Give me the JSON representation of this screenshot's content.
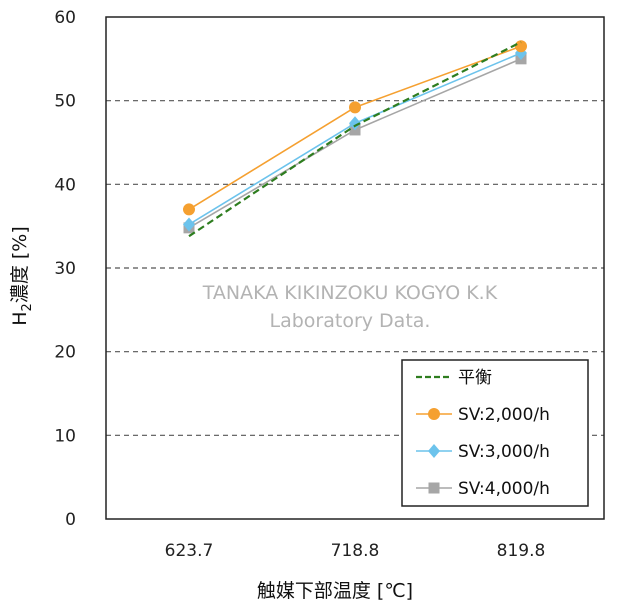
{
  "chart_data": {
    "type": "line",
    "categories": [
      "623.7",
      "718.8",
      "819.8"
    ],
    "ylim": [
      0,
      60
    ],
    "yticks": [
      0,
      10,
      20,
      30,
      40,
      50,
      60
    ],
    "ylabel_main": "H",
    "ylabel_sub": "2",
    "ylabel_rest": "濃度 [%]",
    "xlabel": "触媒下部温度 [℃]",
    "grid": "horizontal-dashed",
    "legend_position": "bottom-right",
    "watermark_line1": "TANAKA KIKINZOKU  KOGYO K.K",
    "watermark_line2": "Laboratory Data.",
    "series": [
      {
        "name": "平衡",
        "values": [
          33.8,
          47.0,
          57.0
        ],
        "color": "#2e7d1f",
        "dash": true,
        "marker": "none"
      },
      {
        "name": "SV:2,000/h",
        "values": [
          37.0,
          49.2,
          56.5
        ],
        "color": "#f5a030",
        "dash": false,
        "marker": "circle"
      },
      {
        "name": "SV:3,000/h",
        "values": [
          35.2,
          47.3,
          55.7
        ],
        "color": "#6cc3ec",
        "dash": false,
        "marker": "diamond"
      },
      {
        "name": "SV:4,000/h",
        "values": [
          34.8,
          46.5,
          55.0
        ],
        "color": "#a6a6a6",
        "dash": false,
        "marker": "square"
      }
    ]
  }
}
